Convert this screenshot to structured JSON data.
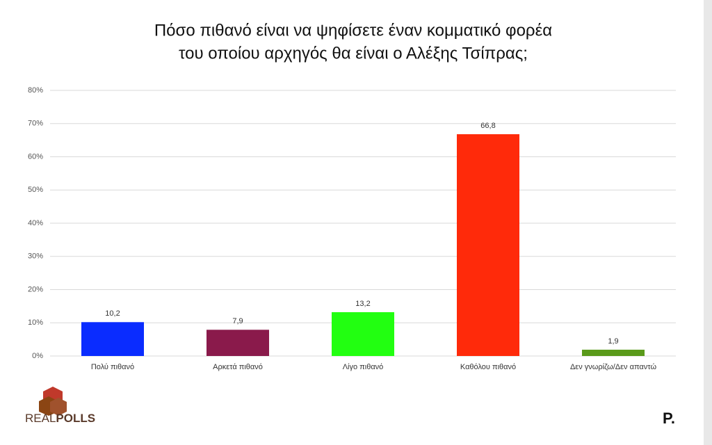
{
  "chart_data": {
    "type": "bar",
    "title": [
      "Πόσο πιθανό είναι να ψηφίσετε έναν κομματικό φορέα",
      "του οποίου αρχηγός θα είναι ο Αλέξης Τσίπρας;"
    ],
    "categories": [
      "Πολύ πιθανό",
      "Αρκετά πιθανό",
      "Λίγο πιθανό",
      "Καθόλου πιθανό",
      "Δεν γνωρίζω/Δεν απαντώ"
    ],
    "values": [
      10.2,
      7.9,
      13.2,
      66.8,
      1.9
    ],
    "value_labels": [
      "10,2",
      "7,9",
      "13,2",
      "66,8",
      "1,9"
    ],
    "colors": [
      "#0a2cff",
      "#8a1a4b",
      "#22ff11",
      "#ff2a0a",
      "#5a9a1a"
    ],
    "ylim": [
      0,
      80
    ],
    "yticks": [
      {
        "value": 0,
        "label": "0%"
      },
      {
        "value": 10,
        "label": "10%"
      },
      {
        "value": 20,
        "label": "20%"
      },
      {
        "value": 30,
        "label": "30%"
      },
      {
        "value": 40,
        "label": "40%"
      },
      {
        "value": 50,
        "label": "50%"
      },
      {
        "value": 60,
        "label": "60%"
      },
      {
        "value": 70,
        "label": "70%"
      },
      {
        "value": 80,
        "label": "80%"
      }
    ],
    "grid": true
  },
  "branding": {
    "left_a": "REAL",
    "left_b": "POLLS",
    "right": "P."
  }
}
